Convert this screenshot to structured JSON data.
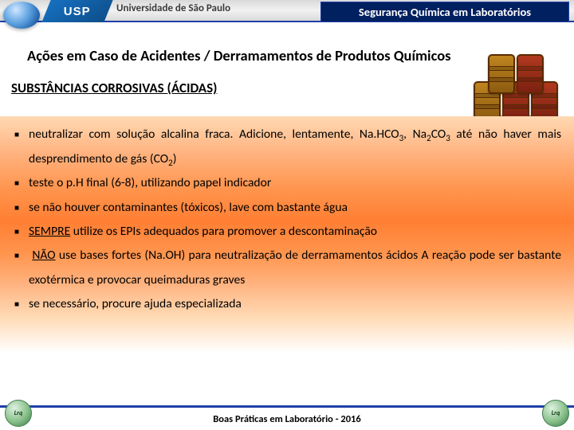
{
  "header": {
    "logo_text": "USP",
    "uni_name": "Universidade de São Paulo",
    "title": "Segurança Química em Laboratórios"
  },
  "section_title": "Ações em Caso de Acidentes / Derramamentos de Produtos Químicos",
  "subheading": "SUBSTÂNCIAS CORROSIVAS (ÁCIDAS)",
  "footer_note": "Boas Práticas em Laboratório - 2016",
  "corner_logo_text": "Lrq",
  "bullets": {
    "b1_pre": "neutralizar com solução alcalina fraca. Adicione, lentamente, Na.HCO",
    "b1_mid": ", Na",
    "b1_mid2": "CO",
    "b1_post": " até não haver mais desprendimento de gás (CO",
    "b1_end": ")",
    "b2": "teste o p.H final (6-8), utilizando papel indicador",
    "b3": "se não houver contaminantes (tóxicos), lave com bastante água",
    "b4_u": "SEMPRE",
    "b4_rest": " utilize os EPIs adequados para promover a descontaminação",
    "b5_u": "NÃO",
    "b5_rest": " use bases fortes (Na.OH) para neutralização de derramamentos ácidos A reação pode ser bastante exotérmica e provocar queimaduras graves",
    "b6": "se necessário, procure ajuda especializada"
  },
  "style": {
    "sub3": "3",
    "sub2": "2",
    "colors": {
      "header_title_bg": "#002060",
      "accent_line": "#1f3fa8",
      "gradient_top": "#ffd9b3",
      "gradient_mid": "#ff7f33"
    }
  }
}
